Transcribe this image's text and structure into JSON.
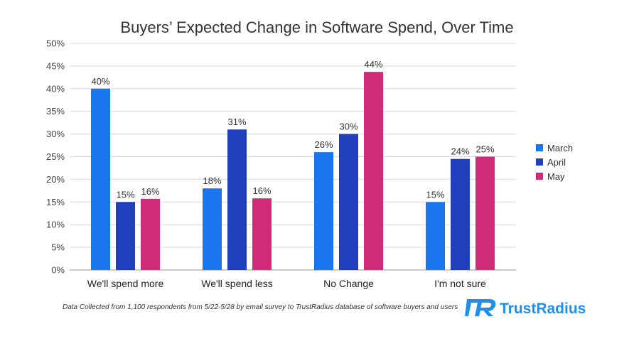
{
  "chart_data": {
    "type": "bar",
    "title": "Buyers’ Expected Change in Software Spend, Over Time",
    "categories": [
      "We'll spend more",
      "We'll spend less",
      "No Change",
      "I'm not sure"
    ],
    "series": [
      {
        "name": "March",
        "color": "#1a75f0",
        "values": [
          40,
          18,
          26,
          15
        ],
        "labels": [
          "40%",
          "18%",
          "26%",
          "15%"
        ]
      },
      {
        "name": "April",
        "color": "#1f3fbf",
        "values": [
          15,
          31,
          30,
          24.5
        ],
        "labels": [
          "15%",
          "31%",
          "30%",
          "24%"
        ]
      },
      {
        "name": "May",
        "color": "#d12a79",
        "values": [
          15.7,
          15.8,
          43.7,
          25
        ],
        "labels": [
          "16%",
          "16%",
          "44%",
          "25%"
        ]
      }
    ],
    "ylim": [
      0,
      50
    ],
    "yticks": [
      "0%",
      "5%",
      "10%",
      "15%",
      "20%",
      "25%",
      "30%",
      "35%",
      "40%",
      "45%",
      "50%"
    ],
    "grid": true,
    "legend_position": "right"
  },
  "footnote": "Data Collected from 1,100 respondents from 5/22-5/28 by email survey to TrustRadius database of software buyers and users",
  "brand": {
    "name": "TrustRadius",
    "logo_icon": "trustradius-logo-icon",
    "color": "#1f8fe8"
  }
}
